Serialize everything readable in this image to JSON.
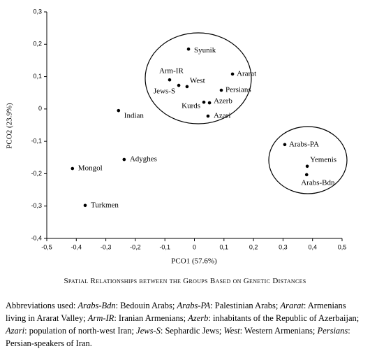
{
  "chart_data": {
    "type": "scatter",
    "x_label": "PCO1 (57.6%)",
    "y_label": "PCO2 (23.9%)",
    "xlim": [
      -0.5,
      0.5
    ],
    "ylim": [
      -0.4,
      0.3
    ],
    "xticks": [
      {
        "value": -0.5,
        "label": "-0,5"
      },
      {
        "value": -0.4,
        "label": "-0,4"
      },
      {
        "value": -0.3,
        "label": "-0,3"
      },
      {
        "value": -0.2,
        "label": "-0,2"
      },
      {
        "value": -0.1,
        "label": "-0,1"
      },
      0,
      {
        "value": 0.1,
        "label": "0,1"
      },
      {
        "value": 0.2,
        "label": "0,2"
      },
      {
        "value": 0.3,
        "label": "0,3"
      },
      {
        "value": 0.4,
        "label": "0,4"
      },
      {
        "value": 0.5,
        "label": "0,5"
      }
    ],
    "yticks": [
      {
        "value": -0.4,
        "label": "-0,4"
      },
      {
        "value": -0.3,
        "label": "-0,3"
      },
      {
        "value": -0.2,
        "label": "-0,2"
      },
      {
        "value": -0.1,
        "label": "-0,1"
      },
      0,
      {
        "value": 0.1,
        "label": "0,1"
      },
      {
        "value": 0.2,
        "label": "0,2"
      },
      {
        "value": 0.3,
        "label": "0,3"
      }
    ],
    "color": "#000000",
    "labels": [
      "Syunik",
      "Arm-IR",
      "West",
      "Jews-S",
      "Ararat",
      "Persians",
      "Kurds",
      "Azerb",
      "Azari",
      "Indian",
      "Adyghes",
      "Mongol",
      "Turkmen",
      "Arabs-PA",
      "Yemenis",
      "Arabs-Bdn"
    ],
    "x": [
      -0.02,
      -0.084,
      -0.025,
      -0.053,
      0.129,
      0.091,
      0.032,
      0.051,
      0.046,
      -0.257,
      -0.238,
      -0.413,
      -0.37,
      0.306,
      0.382,
      0.38
    ],
    "values": [
      0.185,
      0.09,
      0.069,
      0.073,
      0.108,
      0.058,
      0.021,
      0.019,
      -0.022,
      -0.005,
      -0.156,
      -0.184,
      -0.298,
      -0.11,
      -0.177,
      -0.203
    ]
  },
  "caption": "Spatial Relationships between the Groups Based on Genetic Distances",
  "abbreviations": {
    "intro": "Abbreviations used: ",
    "items": [
      {
        "abbr": "Arabs-Bdn",
        "text": ": Bedouin Arabs; "
      },
      {
        "abbr": "Arabs-PA",
        "text": ": Palestinian Arabs; "
      },
      {
        "abbr": "Ararat",
        "text": ": Armenians living in Ararat Valley; "
      },
      {
        "abbr": "Arm-IR",
        "text": ": Iranian Armenians; "
      },
      {
        "abbr": "Azerb",
        "text": ": inhabitants of the Republic of Azerbaijan; "
      },
      {
        "abbr": "Azari",
        "text": ": population of north-west Iran; "
      },
      {
        "abbr": "Jews-S",
        "text": ": Sephardic Jews; "
      },
      {
        "abbr": "West",
        "text": ": Western Armenians; "
      },
      {
        "abbr": "Persians",
        "text": ": Persian-speakers of Iran."
      }
    ]
  }
}
